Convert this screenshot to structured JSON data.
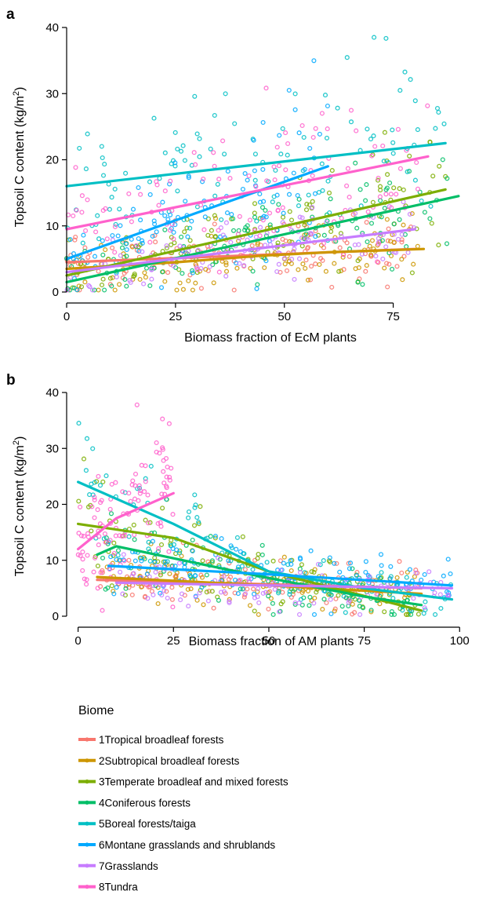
{
  "colors": {
    "1Tropical broadleaf forests": "#F8766D",
    "2Subtropical broadleaf forests": "#CD9600",
    "3Temperate broadleaf and mixed forests": "#7CAE00",
    "4Coniferous forests": "#00BE67",
    "5Boreal forests/taiga": "#00BFC4",
    "6Montane grasslands and shrublands": "#00A9FF",
    "7Grasslands": "#C77CFF",
    "8Tundra": "#FF61CC"
  },
  "legend": {
    "title": "Biome",
    "entries": [
      "1Tropical broadleaf forests",
      "2Subtropical broadleaf forests",
      "3Temperate broadleaf and mixed forests",
      "4Coniferous forests",
      "5Boreal forests/taiga",
      "6Montane grasslands and shrublands",
      "7Grasslands",
      "8Tundra"
    ]
  },
  "chart_data": [
    {
      "panel": "a",
      "type": "scatter",
      "xlabel": "Biomass fraction of EcM plants",
      "ylabel": "Topsoil C content (kg/m",
      "ylabel_sup": "2",
      "ylabel_end": ")",
      "xlim": [
        0,
        92
      ],
      "ylim": [
        0,
        40
      ],
      "xticks": [
        0,
        25,
        50,
        75
      ],
      "yticks": [
        0,
        10,
        20,
        30,
        40
      ],
      "series": [
        {
          "name": "1Tropical broadleaf forests",
          "x": [
            0,
            80
          ],
          "y": [
            4.5,
            6.5
          ]
        },
        {
          "name": "2Subtropical broadleaf forests",
          "x": [
            0,
            25,
            45,
            60,
            82
          ],
          "y": [
            3.5,
            4.5,
            5.5,
            6.0,
            6.5
          ]
        },
        {
          "name": "3Temperate broadleaf and mixed forests",
          "x": [
            0,
            87
          ],
          "y": [
            2.5,
            15.5
          ]
        },
        {
          "name": "4Coniferous forests",
          "x": [
            0,
            90
          ],
          "y": [
            1.5,
            14.5
          ]
        },
        {
          "name": "5Boreal forests/taiga",
          "x": [
            0,
            87
          ],
          "y": [
            16.0,
            22.5
          ]
        },
        {
          "name": "6Montane grasslands and shrublands",
          "x": [
            0,
            60
          ],
          "y": [
            5.0,
            19.0
          ]
        },
        {
          "name": "7Grasslands",
          "x": [
            0,
            80
          ],
          "y": [
            3.0,
            9.5
          ]
        },
        {
          "name": "8Tundra",
          "x": [
            0,
            83
          ],
          "y": [
            9.5,
            20.5
          ]
        }
      ]
    },
    {
      "panel": "b",
      "type": "scatter",
      "xlabel": "Biomass fraction of AM plants",
      "ylabel": "Topsoil C content (kg/m",
      "ylabel_sup": "2",
      "ylabel_end": ")",
      "xlim": [
        -3,
        102
      ],
      "ylim": [
        0,
        40
      ],
      "xticks": [
        0,
        25,
        50,
        75,
        100
      ],
      "yticks": [
        0,
        10,
        20,
        30,
        40
      ],
      "series": [
        {
          "name": "1Tropical broadleaf forests",
          "x": [
            5,
            90
          ],
          "y": [
            6.5,
            5.0
          ]
        },
        {
          "name": "2Subtropical broadleaf forests",
          "x": [
            5,
            50,
            90
          ],
          "y": [
            7.0,
            5.5,
            4.0
          ]
        },
        {
          "name": "3Temperate broadleaf and mixed forests",
          "x": [
            0,
            25,
            50,
            90
          ],
          "y": [
            16.5,
            14.0,
            8.0,
            1.0
          ]
        },
        {
          "name": "4Coniferous forests",
          "x": [
            5,
            10,
            45,
            75,
            90
          ],
          "y": [
            11.0,
            12.5,
            7.5,
            3.5,
            2.0
          ]
        },
        {
          "name": "5Boreal forests/taiga",
          "x": [
            0,
            25,
            50,
            75,
            98
          ],
          "y": [
            24.0,
            16.5,
            8.0,
            5.0,
            3.0
          ]
        },
        {
          "name": "6Montane grasslands and shrublands",
          "x": [
            8,
            50,
            98
          ],
          "y": [
            9.0,
            7.5,
            5.5
          ]
        },
        {
          "name": "7Grasslands",
          "x": [
            10,
            50,
            98
          ],
          "y": [
            6.0,
            5.5,
            5.0
          ]
        },
        {
          "name": "8Tundra",
          "x": [
            0,
            10,
            25
          ],
          "y": [
            12.0,
            17.5,
            22.0
          ]
        }
      ]
    }
  ]
}
